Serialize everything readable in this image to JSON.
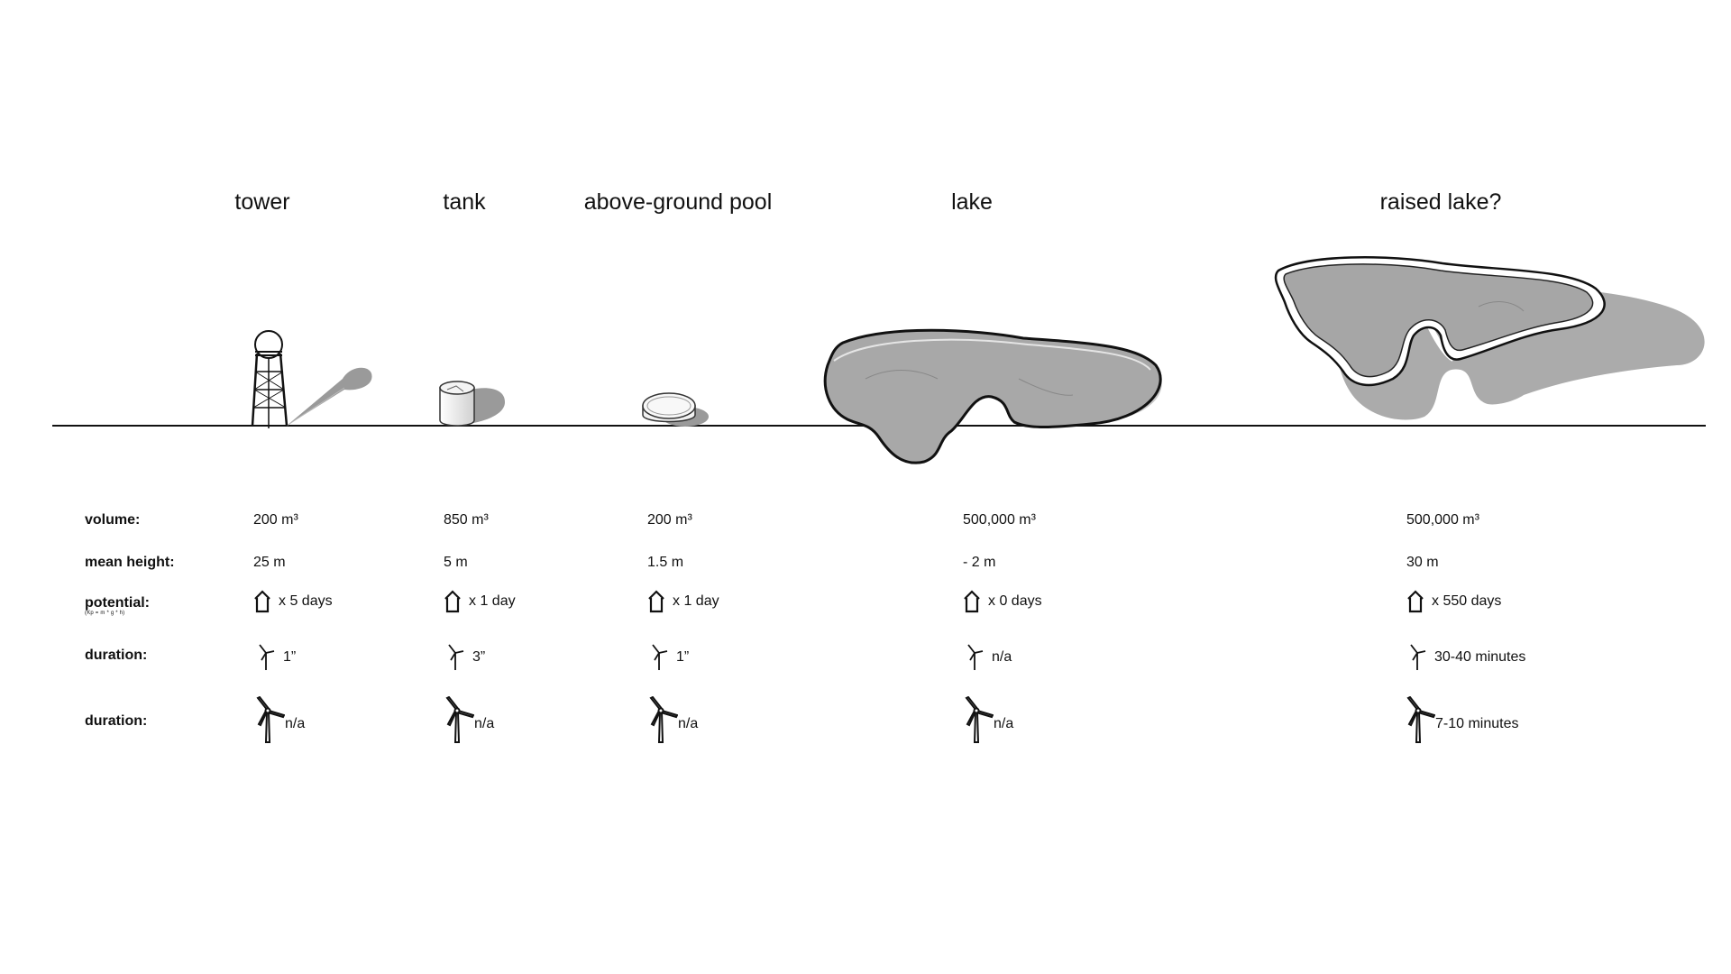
{
  "headers": [
    "tower",
    "tank",
    "above-ground pool",
    "lake",
    "raised lake?"
  ],
  "rows": {
    "volume": {
      "label": "volume:",
      "values": [
        "200 m³",
        "850 m³",
        "200 m³",
        "500,000 m³",
        "500,000 m³"
      ]
    },
    "mean_height": {
      "label": "mean height:",
      "values": [
        "25 m",
        "5 m",
        "1.5 m",
        "- 2 m",
        "30 m"
      ]
    },
    "potential": {
      "label": "potential:",
      "sub_label": "(Kp = m * g * h)",
      "icon": "house-icon",
      "values": [
        "x  5 days",
        "x  1 day",
        "x  1 day",
        "x  0 days",
        "x  550 days"
      ]
    },
    "duration_small": {
      "label": "duration:",
      "icon": "small-wind-turbine-icon",
      "values": [
        "1”",
        "3”",
        "1”",
        "n/a",
        "30-40 minutes"
      ]
    },
    "duration_large": {
      "label": "duration:",
      "icon": "wind-turbine-icon",
      "values": [
        "n/a",
        "n/a",
        "n/a",
        "n/a",
        "7-10 minutes"
      ]
    }
  },
  "colors": {
    "water": "#a8a8a8",
    "shadow": "#9a9a9a",
    "line": "#111111"
  }
}
